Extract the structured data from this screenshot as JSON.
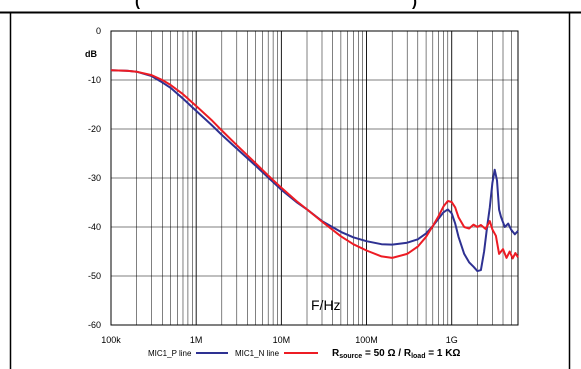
{
  "header": {
    "partial_title": "(",
    "partial_title_end": ")"
  },
  "chart_data": {
    "type": "line",
    "title": "",
    "xlabel": "F/Hz",
    "ylabel": "dB",
    "xscale": "log",
    "xlim": [
      100000,
      6000000000
    ],
    "ylim": [
      -60,
      0
    ],
    "grid": true,
    "x_ticks": [
      {
        "value": 100000,
        "label": "100k"
      },
      {
        "value": 1000000,
        "label": "1M"
      },
      {
        "value": 10000000,
        "label": "10M"
      },
      {
        "value": 100000000,
        "label": "100M"
      },
      {
        "value": 1000000000,
        "label": "1G"
      }
    ],
    "y_ticks": [
      {
        "value": 0,
        "label": "0"
      },
      {
        "value": -10,
        "label": "-10"
      },
      {
        "value": -20,
        "label": "-20"
      },
      {
        "value": -30,
        "label": "-30"
      },
      {
        "value": -40,
        "label": "-40"
      },
      {
        "value": -50,
        "label": "-50"
      },
      {
        "value": -60,
        "label": "-60"
      }
    ],
    "series": [
      {
        "name": "MIC1_P line",
        "color": "#2e3192",
        "points": [
          [
            100000,
            -8.0
          ],
          [
            150000,
            -8.1
          ],
          [
            200000,
            -8.3
          ],
          [
            300000,
            -9.2
          ],
          [
            400000,
            -10.5
          ],
          [
            500000,
            -11.6
          ],
          [
            700000,
            -13.8
          ],
          [
            1000000,
            -16.3
          ],
          [
            1500000,
            -19.1
          ],
          [
            2000000,
            -21.2
          ],
          [
            3000000,
            -24.0
          ],
          [
            5000000,
            -27.5
          ],
          [
            7000000,
            -29.9
          ],
          [
            10000000,
            -32.4
          ],
          [
            15000000,
            -34.9
          ],
          [
            20000000,
            -36.4
          ],
          [
            30000000,
            -38.8
          ],
          [
            50000000,
            -41.0
          ],
          [
            70000000,
            -42.1
          ],
          [
            100000000,
            -42.9
          ],
          [
            150000000,
            -43.5
          ],
          [
            200000000,
            -43.6
          ],
          [
            300000000,
            -43.2
          ],
          [
            400000000,
            -42.5
          ],
          [
            500000000,
            -41.3
          ],
          [
            600000000,
            -39.8
          ],
          [
            700000000,
            -38.3
          ],
          [
            800000000,
            -37.0
          ],
          [
            900000000,
            -36.4
          ],
          [
            1000000000,
            -37.2
          ],
          [
            1100000000,
            -39.3
          ],
          [
            1200000000,
            -42.0
          ],
          [
            1400000000,
            -45.5
          ],
          [
            1600000000,
            -47.2
          ],
          [
            1800000000,
            -48.1
          ],
          [
            2000000000,
            -49.0
          ],
          [
            2200000000,
            -48.8
          ],
          [
            2400000000,
            -45.0
          ],
          [
            2600000000,
            -40.0
          ],
          [
            2800000000,
            -36.0
          ],
          [
            3000000000,
            -31.0
          ],
          [
            3200000000,
            -28.3
          ],
          [
            3400000000,
            -30.5
          ],
          [
            3600000000,
            -36.5
          ],
          [
            3800000000,
            -38.0
          ],
          [
            4200000000,
            -40.0
          ],
          [
            4600000000,
            -39.3
          ],
          [
            5000000000,
            -40.6
          ],
          [
            5500000000,
            -41.5
          ],
          [
            6000000000,
            -40.8
          ]
        ]
      },
      {
        "name": "MIC1_N line",
        "color": "#ed1c24",
        "points": [
          [
            100000,
            -8.0
          ],
          [
            150000,
            -8.1
          ],
          [
            200000,
            -8.3
          ],
          [
            300000,
            -9.0
          ],
          [
            400000,
            -10.0
          ],
          [
            500000,
            -11.0
          ],
          [
            700000,
            -12.9
          ],
          [
            1000000,
            -15.3
          ],
          [
            1500000,
            -18.1
          ],
          [
            2000000,
            -20.3
          ],
          [
            3000000,
            -23.3
          ],
          [
            5000000,
            -27.0
          ],
          [
            7000000,
            -29.5
          ],
          [
            10000000,
            -32.0
          ],
          [
            15000000,
            -34.7
          ],
          [
            20000000,
            -36.4
          ],
          [
            30000000,
            -38.9
          ],
          [
            50000000,
            -41.9
          ],
          [
            70000000,
            -43.5
          ],
          [
            100000000,
            -44.8
          ],
          [
            150000000,
            -46.0
          ],
          [
            200000000,
            -46.3
          ],
          [
            300000000,
            -45.5
          ],
          [
            400000000,
            -44.0
          ],
          [
            500000000,
            -42.0
          ],
          [
            600000000,
            -39.8
          ],
          [
            700000000,
            -37.8
          ],
          [
            800000000,
            -35.8
          ],
          [
            900000000,
            -34.7
          ],
          [
            1000000000,
            -34.9
          ],
          [
            1100000000,
            -36.0
          ],
          [
            1200000000,
            -38.0
          ],
          [
            1400000000,
            -40.0
          ],
          [
            1600000000,
            -40.3
          ],
          [
            1800000000,
            -39.5
          ],
          [
            2000000000,
            -40.0
          ],
          [
            2200000000,
            -39.6
          ],
          [
            2500000000,
            -40.4
          ],
          [
            2800000000,
            -38.8
          ],
          [
            3000000000,
            -40.5
          ],
          [
            3300000000,
            -41.8
          ],
          [
            3600000000,
            -45.5
          ],
          [
            4000000000,
            -44.5
          ],
          [
            4400000000,
            -46.3
          ],
          [
            4800000000,
            -45.0
          ],
          [
            5200000000,
            -46.4
          ],
          [
            5600000000,
            -45.3
          ],
          [
            6000000000,
            -46.2
          ]
        ]
      }
    ],
    "legend": {
      "placement": "bottom",
      "items": [
        {
          "label": "MIC1_P line",
          "color": "#2e3192"
        },
        {
          "label": "MIC1_N line",
          "color": "#ed1c24"
        }
      ]
    },
    "annotation": {
      "r1": "R",
      "r1_sub": "source",
      "r1_value": " = 50 Ω / R",
      "r2_sub": "load",
      "r2_value": " = 1 KΩ"
    }
  }
}
